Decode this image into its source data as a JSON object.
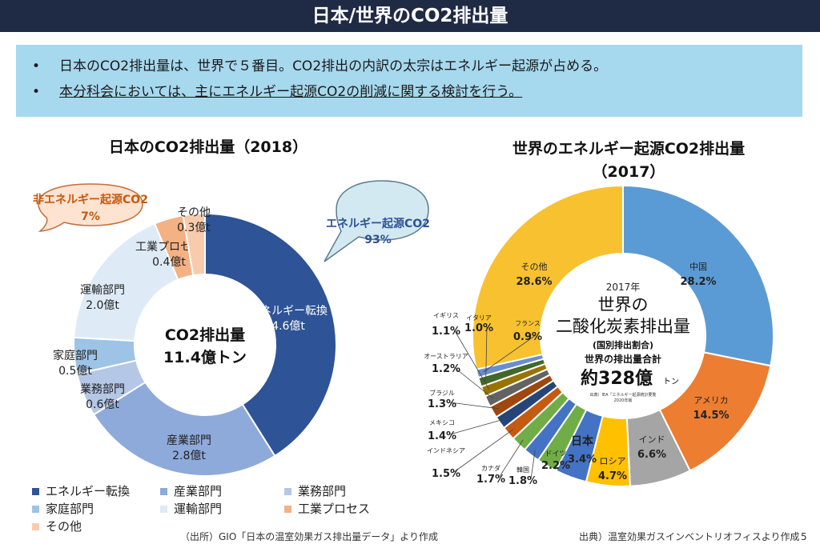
{
  "header": {
    "title": "日本/世界のCO2排出量"
  },
  "summary": {
    "bullet": "•",
    "items": [
      "日本のCO2排出量は、世界で５番目。CO2排出の内訳の太宗はエネルギー起源が占める。",
      "本分科会においては、主にエネルギー起源CO2の削減に関する検討を行う。"
    ]
  },
  "colors": {
    "energy_conversion": "#2e5396",
    "industry": "#8eaadb",
    "business": "#b4c7e7",
    "household": "#9dc3e6",
    "transport": "#deebf7",
    "industrial_process": "#f4b183",
    "other_jp": "#f8cbad",
    "china": "#5b9bd5",
    "usa": "#ed7d31",
    "india": "#a5a5a5",
    "russia": "#ffc000",
    "other_world": "#f8c130"
  },
  "chart_data": [
    {
      "type": "pie",
      "title": "日本のCO2排出量（2018）",
      "center_label": [
        "CO2排出量",
        "11.4億トン"
      ],
      "slices": [
        {
          "name": "エネルギー転換",
          "value": 4.6,
          "unit_label": "4.6億t"
        },
        {
          "name": "産業部門",
          "value": 2.8,
          "unit_label": "2.8億t"
        },
        {
          "name": "業務部門",
          "value": 0.6,
          "unit_label": "0.6億t"
        },
        {
          "name": "家庭部門",
          "value": 0.5,
          "unit_label": "0.5億t"
        },
        {
          "name": "運輸部門",
          "value": 2.0,
          "unit_label": "2.0億t"
        },
        {
          "name": "工業プロセス",
          "value": 0.4,
          "unit_label": "0.4億t"
        },
        {
          "name": "その他",
          "value": 0.3,
          "unit_label": "0.3億t"
        }
      ],
      "callouts": [
        {
          "label": "エネルギー起源CO2",
          "value": "93%"
        },
        {
          "label": "非エネルギー起源CO2",
          "value": "7%"
        }
      ],
      "legend": [
        "エネルギー転換",
        "産業部門",
        "業務部門",
        "家庭部門",
        "運輸部門",
        "工業プロセス",
        "その他"
      ],
      "source": "（出所）GIO「日本の温室効果ガス排出量データ」より作成"
    },
    {
      "type": "pie",
      "title": [
        "世界のエネルギー起源CO2排出量",
        "（2017）"
      ],
      "center_label": {
        "year": "2017年",
        "line1": "世界の",
        "line2": "二酸化炭素排出量",
        "line3": "(国別排出割合)",
        "line4": "世界の排出量合計",
        "line5": "約328億",
        "unit": "トン",
        "src": "出典）IEA「エネルギー起源統計要覧",
        "src2": "2020年版"
      },
      "slices": [
        {
          "name": "中国",
          "value": 28.2,
          "pct": "28.2%"
        },
        {
          "name": "アメリカ",
          "value": 14.5,
          "pct": "14.5%"
        },
        {
          "name": "インド",
          "value": 6.6,
          "pct": "6.6%"
        },
        {
          "name": "ロシア",
          "value": 4.7,
          "pct": "4.7%"
        },
        {
          "name": "日本",
          "value": 3.4,
          "pct": "3.4%"
        },
        {
          "name": "ドイツ",
          "value": 2.2,
          "pct": "2.2%"
        },
        {
          "name": "韓国",
          "value": 1.8,
          "pct": "1.8%"
        },
        {
          "name": "カナダ",
          "value": 1.7,
          "pct": "1.7%"
        },
        {
          "name": "インドネシア",
          "value": 1.5,
          "pct": "1.5%"
        },
        {
          "name": "メキシコ",
          "value": 1.4,
          "pct": "1.4%"
        },
        {
          "name": "ブラジル",
          "value": 1.3,
          "pct": "1.3%"
        },
        {
          "name": "オーストラリア",
          "value": 1.2,
          "pct": "1.2%"
        },
        {
          "name": "イギリス",
          "value": 1.1,
          "pct": "1.1%"
        },
        {
          "name": "イタリア",
          "value": 1.0,
          "pct": "1.0%"
        },
        {
          "name": "フランス",
          "value": 0.9,
          "pct": "0.9%"
        },
        {
          "name": "その他",
          "value": 28.6,
          "pct": "28.6%"
        }
      ],
      "source": "出典）温室効果ガスインベントリオフィスより作成"
    }
  ],
  "page_number": "5"
}
